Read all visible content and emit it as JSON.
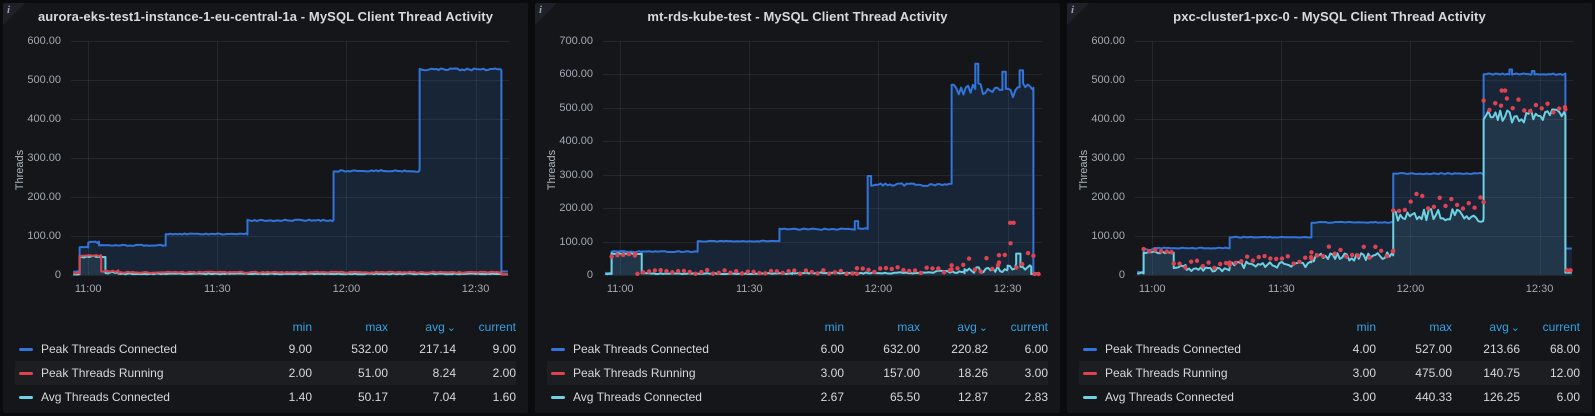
{
  "icons": {
    "info": "i",
    "sort_chevron": "⌄"
  },
  "colors": {
    "accent_header": "#33a2e5",
    "panel_bg": "#141619",
    "page_bg": "#0a0b0d",
    "grid": "rgba(255,255,255,0.07)",
    "blue": "#3274d9",
    "red": "#e0434f",
    "teal": "#6ed0e0"
  },
  "legend": {
    "headers": {
      "min": "min",
      "max": "max",
      "avg": "avg",
      "current": "current"
    },
    "sorted_by": "avg"
  },
  "chart_data": [
    {
      "type": "line",
      "title": "aurora-eks-test1-instance-1-eu-central-1a - MySQL Client Thread Activity",
      "ylabel": "Threads",
      "ylim": [
        0,
        600
      ],
      "xlim_minutes": [
        656,
        758
      ],
      "grid": true,
      "legend_position": "bottom-table",
      "y_ticks": [
        {
          "v": 600,
          "label": "600.00"
        },
        {
          "v": 500,
          "label": "500.00"
        },
        {
          "v": 400,
          "label": "400.00"
        },
        {
          "v": 300,
          "label": "300.00"
        },
        {
          "v": 200,
          "label": "200.00"
        },
        {
          "v": 100,
          "label": "100.00"
        },
        {
          "v": 0,
          "label": "0"
        }
      ],
      "x_ticks": [
        {
          "t": 660,
          "label": "11:00"
        },
        {
          "t": 690,
          "label": "11:30"
        },
        {
          "t": 720,
          "label": "12:00"
        },
        {
          "t": 750,
          "label": "12:30"
        }
      ],
      "draw_order": [
        0,
        2,
        1
      ],
      "series": [
        {
          "name": "Peak Threads Connected",
          "color": "#3274d9",
          "style": "line",
          "width": 2,
          "fill_opacity": 0.16,
          "segments": [
            [
              656.5,
              658,
              9,
              1
            ],
            [
              658,
              660,
              72,
              2
            ],
            [
              660,
              662.5,
              84,
              2
            ],
            [
              662.5,
              678,
              76,
              1.5
            ],
            [
              678,
              697,
              105,
              1.5
            ],
            [
              697,
              717,
              140,
              2
            ],
            [
              717,
              737,
              267,
              2.5
            ],
            [
              737,
              756,
              527,
              2.5
            ],
            [
              756,
              757.5,
              9,
              0
            ]
          ],
          "stats": {
            "min": "9.00",
            "max": "532.00",
            "avg": "217.14",
            "current": "9.00"
          }
        },
        {
          "name": "Peak Threads Running",
          "color": "#e0434f",
          "style": "line",
          "width": 2,
          "fill_opacity": 0,
          "segments": [
            [
              656.5,
              658,
              5,
              1
            ],
            [
              658,
              663,
              50,
              1.5
            ],
            [
              663,
              667,
              10,
              2
            ],
            [
              667,
              756,
              7,
              1.5
            ],
            [
              756,
              757.5,
              2,
              0
            ]
          ],
          "stats": {
            "min": "2.00",
            "max": "51.00",
            "avg": "8.24",
            "current": "2.00"
          }
        },
        {
          "name": "Avg Threads Connected",
          "color": "#6ed0e0",
          "style": "line",
          "width": 2,
          "fill_opacity": 0.1,
          "segments": [
            [
              656.5,
              658,
              2,
              1
            ],
            [
              658,
              664,
              47,
              2.5
            ],
            [
              664,
              667,
              7,
              3
            ],
            [
              667,
              756,
              3,
              1.2
            ],
            [
              756,
              757.5,
              1.6,
              0
            ]
          ],
          "stats": {
            "min": "1.40",
            "max": "50.17",
            "avg": "7.04",
            "current": "1.60"
          }
        }
      ]
    },
    {
      "type": "line",
      "title": "mt-rds-kube-test - MySQL Client Thread Activity",
      "ylabel": "Threads",
      "ylim": [
        0,
        700
      ],
      "xlim_minutes": [
        656,
        758
      ],
      "grid": true,
      "legend_position": "bottom-table",
      "y_ticks": [
        {
          "v": 700,
          "label": "700.00"
        },
        {
          "v": 600,
          "label": "600.00"
        },
        {
          "v": 500,
          "label": "500.00"
        },
        {
          "v": 400,
          "label": "400.00"
        },
        {
          "v": 300,
          "label": "300.00"
        },
        {
          "v": 200,
          "label": "200.00"
        },
        {
          "v": 100,
          "label": "100.00"
        },
        {
          "v": 0,
          "label": "0"
        }
      ],
      "x_ticks": [
        {
          "t": 660,
          "label": "11:00"
        },
        {
          "t": 690,
          "label": "11:30"
        },
        {
          "t": 720,
          "label": "12:00"
        },
        {
          "t": 750,
          "label": "12:30"
        }
      ],
      "draw_order": [
        0,
        2,
        1
      ],
      "series": [
        {
          "name": "Peak Threads Connected",
          "color": "#3274d9",
          "style": "line",
          "width": 2,
          "fill_opacity": 0.16,
          "segments": [
            [
              656.5,
              658,
              6,
              1
            ],
            [
              658,
              661,
              71,
              1.5
            ],
            [
              661,
              678,
              70,
              1.5
            ],
            [
              678,
              697,
              101,
              1.5
            ],
            [
              697,
              714.5,
              137,
              2
            ],
            [
              714.5,
              715.3,
              161,
              0
            ],
            [
              715.3,
              717.5,
              138,
              2
            ],
            [
              717.5,
              718.3,
              296,
              0
            ],
            [
              718.3,
              737,
              270,
              4
            ],
            [
              737,
              742.5,
              556,
              18
            ],
            [
              742.5,
              743.2,
              632,
              0
            ],
            [
              743.2,
              748.8,
              556,
              20
            ],
            [
              748.8,
              749.6,
              608,
              0
            ],
            [
              749.6,
              752.8,
              548,
              16
            ],
            [
              752.8,
              753.6,
              612,
              0
            ],
            [
              753.6,
              756,
              565,
              12
            ],
            [
              756,
              757.5,
              6,
              0
            ]
          ],
          "stats": {
            "min": "6.00",
            "max": "632.00",
            "avg": "220.82",
            "current": "6.00"
          }
        },
        {
          "name": "Peak Threads Running",
          "color": "#e0434f",
          "style": "points",
          "width": 2,
          "fill_opacity": 0,
          "segments": [
            [
              658,
              663.5,
              60,
              5
            ],
            [
              664,
              715,
              9,
              6
            ],
            [
              715,
              737,
              15,
              9
            ],
            [
              737,
              748,
              32,
              22
            ],
            [
              748,
              756,
              60,
              40
            ],
            [
              750.6,
              751.4,
              156,
              0
            ],
            [
              756.3,
              757.2,
              3,
              0
            ]
          ],
          "stats": {
            "min": "3.00",
            "max": "157.00",
            "avg": "18.26",
            "current": "3.00"
          }
        },
        {
          "name": "Avg Threads Connected",
          "color": "#6ed0e0",
          "style": "line",
          "width": 2,
          "fill_opacity": 0.1,
          "segments": [
            [
              656.5,
              658,
              3,
              1
            ],
            [
              658,
              665,
              64,
              1.5
            ],
            [
              665,
              700,
              4,
              1.5
            ],
            [
              700,
              730,
              6,
              2
            ],
            [
              730,
              740,
              9,
              4
            ],
            [
              740,
              750,
              16,
              10
            ],
            [
              750,
              752,
              30,
              14
            ],
            [
              752,
              753,
              64,
              0
            ],
            [
              753,
              755.5,
              22,
              12
            ],
            [
              755.5,
              757.5,
              3,
              1
            ]
          ],
          "stats": {
            "min": "2.67",
            "max": "65.50",
            "avg": "12.87",
            "current": "2.83"
          }
        }
      ]
    },
    {
      "type": "line",
      "title": "pxc-cluster1-pxc-0 - MySQL Client Thread Activity",
      "ylabel": "Threads",
      "ylim": [
        0,
        600
      ],
      "xlim_minutes": [
        656,
        758
      ],
      "grid": true,
      "legend_position": "bottom-table",
      "y_ticks": [
        {
          "v": 600,
          "label": "600.00"
        },
        {
          "v": 500,
          "label": "500.00"
        },
        {
          "v": 400,
          "label": "400.00"
        },
        {
          "v": 300,
          "label": "300.00"
        },
        {
          "v": 200,
          "label": "200.00"
        },
        {
          "v": 100,
          "label": "100.00"
        },
        {
          "v": 0,
          "label": "0"
        }
      ],
      "x_ticks": [
        {
          "t": 660,
          "label": "11:00"
        },
        {
          "t": 690,
          "label": "11:30"
        },
        {
          "t": 720,
          "label": "12:00"
        },
        {
          "t": 750,
          "label": "12:30"
        }
      ],
      "draw_order": [
        0,
        2,
        1
      ],
      "series": [
        {
          "name": "Peak Threads Connected",
          "color": "#3274d9",
          "style": "line",
          "width": 2,
          "fill_opacity": 0.16,
          "segments": [
            [
              656.5,
              658,
              8,
              2
            ],
            [
              658,
              660.5,
              66,
              2
            ],
            [
              660.5,
              678,
              69,
              1.2
            ],
            [
              678,
              697,
              97,
              1.2
            ],
            [
              697,
              716,
              135,
              1.2
            ],
            [
              716,
              737,
              260,
              1.5
            ],
            [
              737,
              743,
              515,
              2
            ],
            [
              743,
              743.6,
              527,
              0
            ],
            [
              743.6,
              748.2,
              515,
              2
            ],
            [
              748.2,
              748.8,
              523,
              0
            ],
            [
              748.8,
              756,
              515,
              2
            ],
            [
              756,
              757.5,
              68,
              0
            ]
          ],
          "stats": {
            "min": "4.00",
            "max": "527.00",
            "avg": "213.66",
            "current": "68.00"
          }
        },
        {
          "name": "Peak Threads Running",
          "color": "#e0434f",
          "style": "points",
          "width": 2,
          "fill_opacity": 0,
          "segments": [
            [
              658,
              664.5,
              62,
              5
            ],
            [
              665,
              678,
              27,
              10
            ],
            [
              678,
              697,
              38,
              12
            ],
            [
              697,
              716,
              58,
              15
            ],
            [
              716,
              737,
              188,
              26
            ],
            [
              737,
              756,
              436,
              20
            ],
            [
              741.2,
              742,
              473,
              0
            ],
            [
              756.4,
              757.2,
              12,
              0
            ]
          ],
          "stats": {
            "min": "3.00",
            "max": "475.00",
            "avg": "140.75",
            "current": "12.00"
          }
        },
        {
          "name": "Avg Threads Connected",
          "color": "#6ed0e0",
          "style": "line",
          "width": 2,
          "fill_opacity": 0.1,
          "segments": [
            [
              656.5,
              658,
              5,
              2
            ],
            [
              658,
              665,
              58,
              2.5
            ],
            [
              665,
              668,
              20,
              6
            ],
            [
              668,
              678,
              15,
              6
            ],
            [
              678,
              697,
              26,
              9
            ],
            [
              697,
              716,
              45,
              13
            ],
            [
              716,
              737,
              152,
              18
            ],
            [
              737,
              756,
              408,
              18
            ],
            [
              756,
              757.5,
              6,
              0
            ]
          ],
          "stats": {
            "min": "3.00",
            "max": "440.33",
            "avg": "126.25",
            "current": "6.00"
          }
        }
      ]
    }
  ]
}
